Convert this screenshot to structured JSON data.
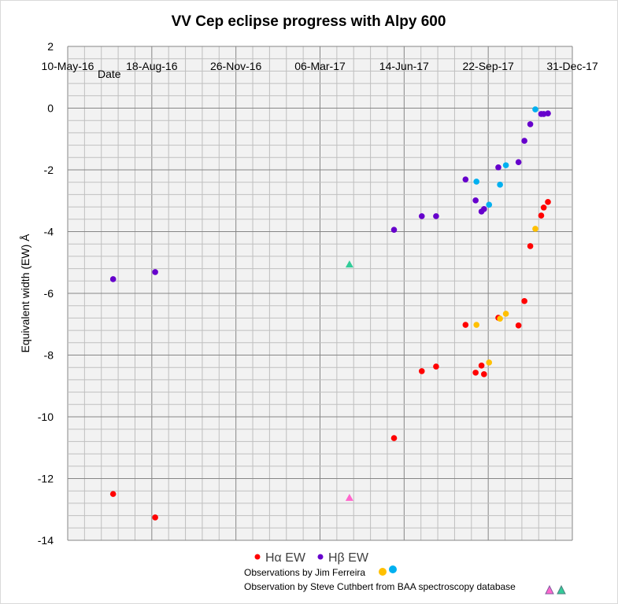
{
  "chart_data": {
    "type": "scatter",
    "title": "VV Cep eclipse progress with Alpy 600",
    "xlabel": "Date",
    "ylabel": "Equivalent width (EW)  Å",
    "x_origin_date": "10-May-16",
    "x_unit": "days since 10-May-16",
    "xlim": [
      0,
      600
    ],
    "ylim": [
      -14,
      2
    ],
    "x_ticks": [
      {
        "day": 0,
        "label": "10-May-16"
      },
      {
        "day": 100,
        "label": "18-Aug-16"
      },
      {
        "day": 200,
        "label": "26-Nov-16"
      },
      {
        "day": 300,
        "label": "06-Mar-17"
      },
      {
        "day": 400,
        "label": "14-Jun-17"
      },
      {
        "day": 500,
        "label": "22-Sep-17"
      },
      {
        "day": 600,
        "label": "31-Dec-17"
      }
    ],
    "x_minor_step": 20,
    "y_ticks": [
      2,
      0,
      -2,
      -4,
      -6,
      -8,
      -10,
      -12,
      -14
    ],
    "y_minor_step": 0.4,
    "grid": true,
    "legend_position": "bottom",
    "series": [
      {
        "name": "Hα EW",
        "marker": "circle",
        "color": "#ff0000",
        "points": [
          [
            54,
            -12.5
          ],
          [
            104,
            -13.26
          ],
          [
            388,
            -10.69
          ],
          [
            421,
            -8.52
          ],
          [
            438,
            -8.37
          ],
          [
            473,
            -7.02
          ],
          [
            485,
            -8.57
          ],
          [
            492,
            -8.34
          ],
          [
            495,
            -8.62
          ],
          [
            512,
            -6.79
          ],
          [
            536,
            -7.04
          ],
          [
            543,
            -6.25
          ],
          [
            550,
            -4.47
          ],
          [
            563,
            -3.48
          ],
          [
            566,
            -3.22
          ],
          [
            571,
            -3.04
          ]
        ]
      },
      {
        "name": "Hβ EW",
        "marker": "circle",
        "color": "#6600cc",
        "points": [
          [
            54,
            -5.54
          ],
          [
            104,
            -5.31
          ],
          [
            388,
            -3.94
          ],
          [
            421,
            -3.5
          ],
          [
            438,
            -3.5
          ],
          [
            473,
            -2.31
          ],
          [
            485,
            -2.99
          ],
          [
            492,
            -3.35
          ],
          [
            495,
            -3.27
          ],
          [
            512,
            -1.92
          ],
          [
            536,
            -1.75
          ],
          [
            543,
            -1.06
          ],
          [
            550,
            -0.52
          ],
          [
            563,
            -0.19
          ],
          [
            566,
            -0.19
          ],
          [
            571,
            -0.17
          ]
        ]
      },
      {
        "name": "Hα (Jim Ferreira)",
        "marker": "circle",
        "color": "#ffc000",
        "points": [
          [
            486,
            -7.02
          ],
          [
            514,
            -6.82
          ],
          [
            521,
            -6.66
          ],
          [
            501,
            -8.24
          ],
          [
            556,
            -3.91
          ]
        ]
      },
      {
        "name": "Hβ (Jim Ferreira)",
        "marker": "circle",
        "color": "#00b0f0",
        "points": [
          [
            486,
            -2.38
          ],
          [
            514,
            -2.48
          ],
          [
            521,
            -1.85
          ],
          [
            501,
            -3.13
          ],
          [
            556,
            -0.04
          ]
        ]
      },
      {
        "name": "Hα (Steve Cuthbert, BAA)",
        "marker": "triangle",
        "color": "#ff66cc",
        "points": [
          [
            335,
            -12.62
          ]
        ]
      },
      {
        "name": "Hβ (Steve Cuthbert, BAA)",
        "marker": "triangle",
        "color": "#33cc99",
        "points": [
          [
            335,
            -5.06
          ]
        ]
      }
    ],
    "legend": [
      {
        "label": "Hα EW",
        "color": "#ff0000",
        "marker": "circle"
      },
      {
        "label": "Hβ EW",
        "color": "#6600cc",
        "marker": "circle"
      }
    ],
    "annotations": [
      {
        "text": "Observations by Jim Ferreira",
        "markers": [
          {
            "marker": "circle",
            "color": "#ffc000"
          },
          {
            "marker": "circle",
            "color": "#00b0f0"
          }
        ]
      },
      {
        "text": "Observation by Steve Cuthbert from BAA spectroscopy database",
        "markers": [
          {
            "marker": "triangle",
            "color": "#ff66cc"
          },
          {
            "marker": "triangle",
            "color": "#33cc99"
          }
        ]
      }
    ]
  }
}
